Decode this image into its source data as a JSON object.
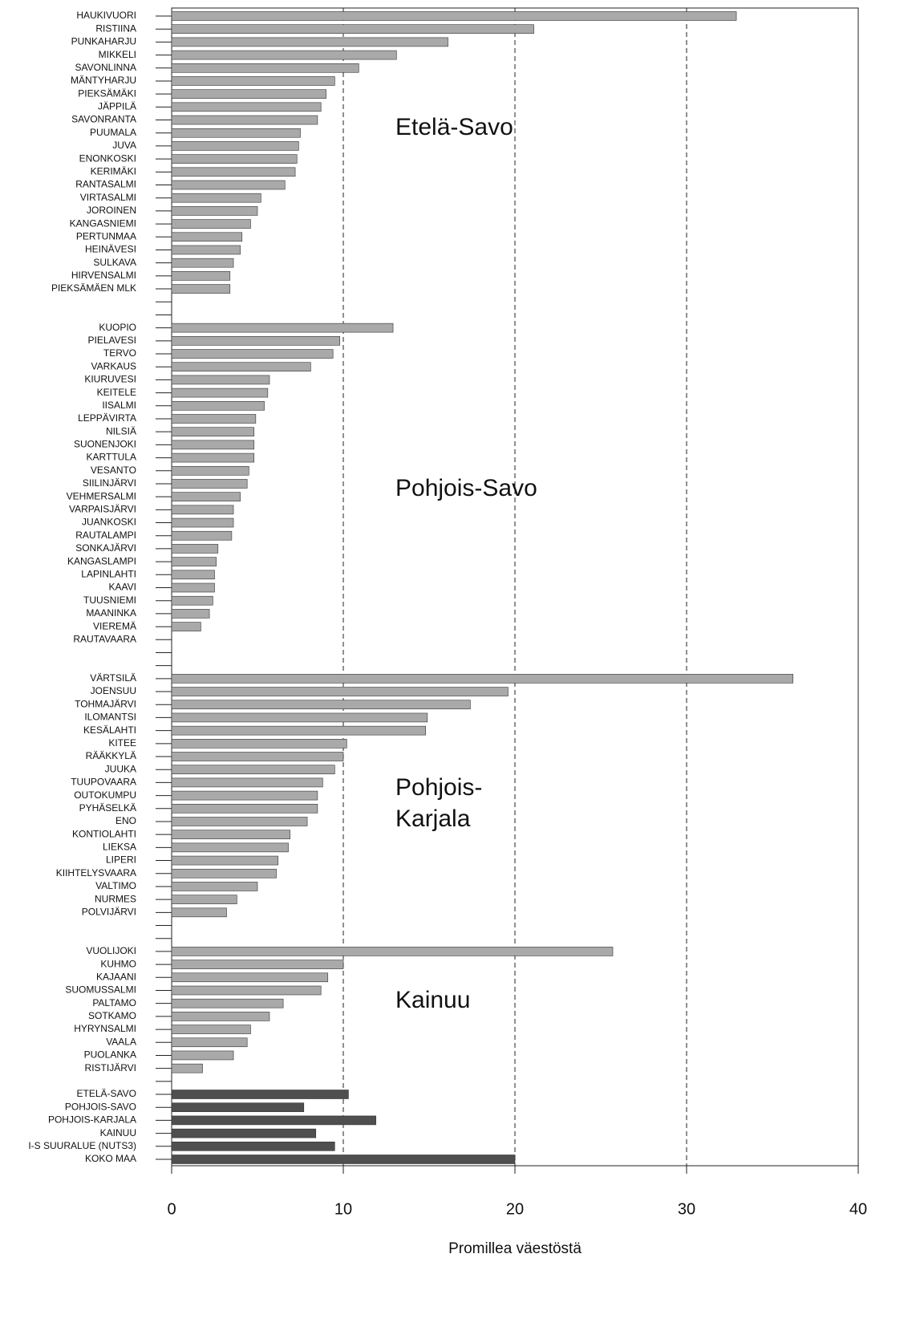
{
  "chart_data": {
    "type": "hbar",
    "categories": [
      "HAUKIVUORI",
      "RISTIINA",
      "PUNKAHARJU",
      "MIKKELI",
      "SAVONLINNA",
      "MÄNTYHARJU",
      "PIEKSÄMÄKI",
      "JÄPPILÄ",
      "SAVONRANTA",
      "PUUMALA",
      "JUVA",
      "ENONKOSKI",
      "KERIMÄKI",
      "RANTASALMI",
      "VIRTASALMI",
      "JOROINEN",
      "KANGASNIEMI",
      "PERTUNMAA",
      "HEINÄVESI",
      "SULKAVA",
      "HIRVENSALMI",
      "PIEKSÄMÄEN MLK",
      null,
      null,
      "KUOPIO",
      "PIELAVESI",
      "TERVO",
      "VARKAUS",
      "KIURUVESI",
      "KEITELE",
      "IISALMI",
      "LEPPÄVIRTA",
      "NILSIÄ",
      "SUONENJOKI",
      "KARTTULA",
      "VESANTO",
      "SIILINJÄRVI",
      "VEHMERSALMI",
      "VARPAISJÄRVI",
      "JUANKOSKI",
      "RAUTALAMPI",
      "SONKAJÄRVI",
      "KANGASLAMPI",
      "LAPINLAHTI",
      "KAAVI",
      "TUUSNIEMI",
      "MAANINKA",
      "VIEREMÄ",
      "RAUTAVAARA",
      null,
      null,
      "VÄRTSILÄ",
      "JOENSUU",
      "TOHMAJÄRVI",
      "ILOMANTSI",
      "KESÄLAHTI",
      "KITEE",
      "RÄÄKKYLÄ",
      "JUUKA",
      "TUUPOVAARA",
      "OUTOKUMPU",
      "PYHÄSELKÄ",
      "ENO",
      "KONTIOLAHTI",
      "LIEKSA",
      "LIPERI",
      "KIIHTELYSVAARA",
      "VALTIMO",
      "NURMES",
      "POLVIJÄRVI",
      null,
      null,
      "VUOLIJOKI",
      "KUHMO",
      "KAJAANI",
      "SUOMUSSALMI",
      "PALTAMO",
      "SOTKAMO",
      "HYRYNSALMI",
      "VAALA",
      "PUOLANKA",
      "RISTIJÄRVI",
      null,
      "ETELÄ-SAVO",
      "POHJOIS-SAVO",
      "POHJOIS-KARJALA",
      "KAINUU",
      "I-S SUURALUE (NUTS3)",
      "KOKO MAA"
    ],
    "values": [
      32.9,
      21.1,
      16.1,
      13.1,
      10.9,
      9.5,
      9.0,
      8.7,
      8.5,
      7.5,
      7.4,
      7.3,
      7.2,
      6.6,
      5.2,
      5.0,
      4.6,
      4.1,
      4.0,
      3.6,
      3.4,
      3.4,
      null,
      null,
      12.9,
      9.8,
      9.4,
      8.1,
      5.7,
      5.6,
      5.4,
      4.9,
      4.8,
      4.8,
      4.8,
      4.5,
      4.4,
      4.0,
      3.6,
      3.6,
      3.5,
      2.7,
      2.6,
      2.5,
      2.5,
      2.4,
      2.2,
      1.7,
      0,
      null,
      null,
      36.2,
      19.6,
      17.4,
      14.9,
      14.8,
      10.2,
      10.0,
      9.5,
      8.8,
      8.5,
      8.5,
      7.9,
      6.9,
      6.8,
      6.2,
      6.1,
      5.0,
      3.8,
      3.2,
      null,
      null,
      25.7,
      10.0,
      9.1,
      8.7,
      6.5,
      5.7,
      4.6,
      4.4,
      3.6,
      1.8,
      null,
      10.3,
      7.7,
      11.9,
      8.4,
      9.5,
      20.0
    ],
    "colors": [
      "#a9a9a9",
      "#a9a9a9",
      "#a9a9a9",
      "#a9a9a9",
      "#a9a9a9",
      "#a9a9a9",
      "#a9a9a9",
      "#a9a9a9",
      "#a9a9a9",
      "#a9a9a9",
      "#a9a9a9",
      "#a9a9a9",
      "#a9a9a9",
      "#a9a9a9",
      "#a9a9a9",
      "#a9a9a9",
      "#a9a9a9",
      "#a9a9a9",
      "#a9a9a9",
      "#a9a9a9",
      "#a9a9a9",
      "#a9a9a9",
      null,
      null,
      "#a9a9a9",
      "#a9a9a9",
      "#a9a9a9",
      "#a9a9a9",
      "#a9a9a9",
      "#a9a9a9",
      "#a9a9a9",
      "#a9a9a9",
      "#a9a9a9",
      "#a9a9a9",
      "#a9a9a9",
      "#a9a9a9",
      "#a9a9a9",
      "#a9a9a9",
      "#a9a9a9",
      "#a9a9a9",
      "#a9a9a9",
      "#a9a9a9",
      "#a9a9a9",
      "#a9a9a9",
      "#a9a9a9",
      "#a9a9a9",
      "#a9a9a9",
      "#a9a9a9",
      "#a9a9a9",
      null,
      null,
      "#a9a9a9",
      "#a9a9a9",
      "#a9a9a9",
      "#a9a9a9",
      "#a9a9a9",
      "#a9a9a9",
      "#a9a9a9",
      "#a9a9a9",
      "#a9a9a9",
      "#a9a9a9",
      "#a9a9a9",
      "#a9a9a9",
      "#a9a9a9",
      "#a9a9a9",
      "#a9a9a9",
      "#a9a9a9",
      "#a9a9a9",
      "#a9a9a9",
      "#a9a9a9",
      null,
      null,
      "#a9a9a9",
      "#a9a9a9",
      "#a9a9a9",
      "#a9a9a9",
      "#a9a9a9",
      "#a9a9a9",
      "#a9a9a9",
      "#a9a9a9",
      "#a9a9a9",
      "#a9a9a9",
      null,
      "#4f4f4f",
      "#4f4f4f",
      "#4f4f4f",
      "#4f4f4f",
      "#4f4f4f",
      "#4f4f4f"
    ],
    "xlim": [
      0,
      40
    ],
    "xticks": [
      0,
      10,
      20,
      30,
      40
    ],
    "grid": "dashed",
    "x_label": "Promillea väestöstä",
    "annotations": [
      [
        "Etelä-Savo"
      ],
      [
        "Pohjois-Savo"
      ],
      [
        "Pohjois-",
        "Karjala"
      ],
      [
        "Kainuu"
      ]
    ]
  }
}
